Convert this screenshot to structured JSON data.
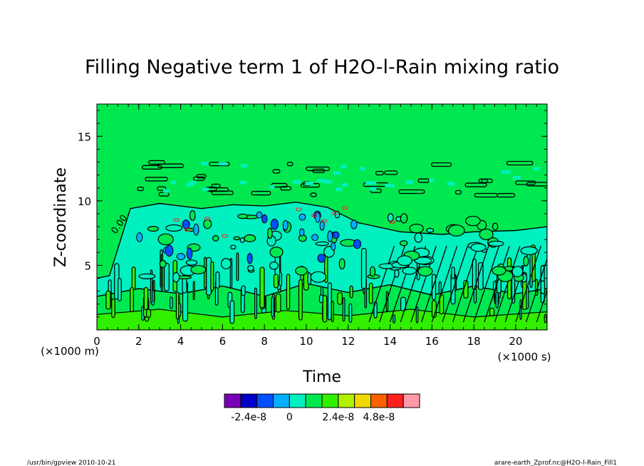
{
  "chart_data": {
    "type": "heatmap",
    "title": "Filling Negative term 1 of H2O-l-Rain mixing ratio",
    "xlabel": "Time",
    "ylabel": "Z-coordinate",
    "x_unit": "(×1000 s)",
    "y_unit": "(×1000 m)",
    "xlim": [
      0,
      21.5
    ],
    "ylim": [
      0,
      17.5
    ],
    "x_ticks": [
      "0",
      "2",
      "4",
      "6",
      "8",
      "10",
      "12",
      "14",
      "16",
      "18",
      "20"
    ],
    "y_ticks": [
      "5",
      "10",
      "15"
    ],
    "contour_label": "0.00",
    "colorbar": {
      "colors": [
        "#7a00b8",
        "#0000c8",
        "#0050ff",
        "#00b0ff",
        "#00f0c0",
        "#00e850",
        "#30f000",
        "#b0f000",
        "#f0d800",
        "#ff6000",
        "#ff2020",
        "#ff9aa8"
      ],
      "tick_labels": [
        "-2.4e-8",
        "0",
        "2.4e-8",
        "4.8e-8"
      ]
    },
    "background_color": "#00e850",
    "fill_colors": {
      "cyan_region": "#00f0c0",
      "light_green": "#30f000"
    }
  },
  "footer": {
    "left": "/usr/bin/gpview   2010-10-21",
    "right": "arare-earth_Zprof.nc@H2O-l-Rain_Fill1"
  }
}
